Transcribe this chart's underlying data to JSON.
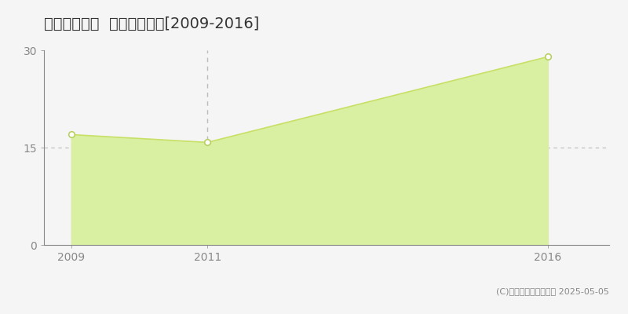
{
  "title": "一宮市中島通  土地価格推移[2009-2016]",
  "years": [
    2009,
    2011,
    2016
  ],
  "values": [
    17.0,
    15.8,
    29.0
  ],
  "ylim": [
    0,
    30
  ],
  "xlim": [
    2008.6,
    2016.9
  ],
  "fill_color": "#d9f0a3",
  "line_color": "#c8e065",
  "marker_color": "#ffffff",
  "marker_edge_color": "#b8d060",
  "vline_x": 2011,
  "vline_color": "#bbbbbb",
  "hgrid_y": 15,
  "hgrid_color": "#bbbbbb",
  "yticks": [
    0,
    15,
    30
  ],
  "xticks": [
    2009,
    2011,
    2016
  ],
  "legend_square_color": "#c8e065",
  "copyright_text": "(C)土地価格ドットコム 2025-05-05",
  "background_color": "#f5f5f5",
  "axes_color": "#888888",
  "title_fontsize": 14,
  "tick_fontsize": 10,
  "legend_fontsize": 10,
  "copyright_fontsize": 8
}
